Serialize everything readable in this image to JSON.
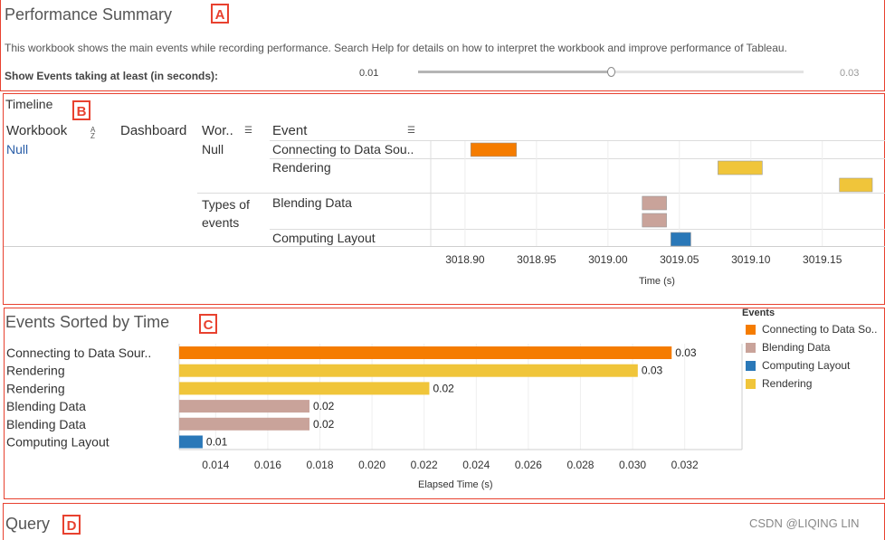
{
  "summary": {
    "title": "Performance Summary",
    "tag": "A",
    "description": "This workbook shows the main events while recording performance. Search Help for details on how to interpret the workbook and improve performance of Tableau.",
    "filter_label": "Show Events taking at least (in seconds):",
    "slider_min": "0.01",
    "slider_max": "0.03",
    "slider_value": 0.5
  },
  "timeline": {
    "title": "Timeline",
    "tag": "B",
    "headers": {
      "workbook": "Workbook",
      "dashboard": "Dashboard",
      "worksheet": "Wor..",
      "event": "Event"
    },
    "sort_icon_az": "A↓Z",
    "workbook_value": "Null",
    "worksheet_null": "Null",
    "worksheet_types": "Types of events",
    "events": [
      "Connecting to Data Sou..",
      "Rendering",
      "Blending Data",
      "Computing Layout"
    ],
    "axis_ticks": [
      "3018.90",
      "3018.95",
      "3019.00",
      "3019.05",
      "3019.10",
      "3019.15"
    ],
    "axis_label": "Time (s)"
  },
  "events_sorted": {
    "title": "Events Sorted by Time",
    "tag": "C",
    "legend_title": "Events",
    "legend": [
      {
        "label": "Connecting to Data So..",
        "color": "#f57c00"
      },
      {
        "label": "Blending Data",
        "color": "#c9a39a"
      },
      {
        "label": "Computing Layout",
        "color": "#2a78b8"
      },
      {
        "label": "Rendering",
        "color": "#f0c53a"
      }
    ]
  },
  "query": {
    "title": "Query",
    "tag": "D"
  },
  "watermark": "CSDN @LIQING LIN",
  "chart_data": [
    {
      "type": "bar",
      "title": "Timeline",
      "xlabel": "Time (s)",
      "xlim": [
        3018.876,
        3019.185
      ],
      "x_ticks": [
        3018.9,
        3018.95,
        3019.0,
        3019.05,
        3019.1,
        3019.15
      ],
      "bars": [
        {
          "event": "Connecting to Data Sou..",
          "start": 3018.904,
          "end": 3018.936,
          "color": "#f57c00"
        },
        {
          "event": "Rendering",
          "start": 3019.077,
          "end": 3019.108,
          "color": "#f0c53a"
        },
        {
          "event": "Rendering",
          "start": 3019.162,
          "end": 3019.185,
          "color": "#f0c53a"
        },
        {
          "event": "Blending Data",
          "start": 3019.024,
          "end": 3019.041,
          "color": "#c9a39a"
        },
        {
          "event": "Blending Data",
          "start": 3019.024,
          "end": 3019.041,
          "color": "#c9a39a"
        },
        {
          "event": "Computing Layout",
          "start": 3019.044,
          "end": 3019.058,
          "color": "#2a78b8"
        }
      ]
    },
    {
      "type": "bar",
      "title": "Events Sorted by Time",
      "xlabel": "Elapsed Time (s)",
      "xlim": [
        0.0126,
        0.0342
      ],
      "x_ticks": [
        0.014,
        0.016,
        0.018,
        0.02,
        0.022,
        0.024,
        0.026,
        0.028,
        0.03,
        0.032
      ],
      "categories": [
        "Connecting to Data Sour..",
        "Rendering",
        "Rendering",
        "Blending Data",
        "Blending Data",
        "Computing Layout"
      ],
      "values": [
        0.0315,
        0.0302,
        0.0222,
        0.0176,
        0.0176,
        0.0135
      ],
      "value_labels": [
        "0.03",
        "0.03",
        "0.02",
        "0.02",
        "0.02",
        "0.01"
      ],
      "colors": [
        "#f57c00",
        "#f0c53a",
        "#f0c53a",
        "#c9a39a",
        "#c9a39a",
        "#2a78b8"
      ]
    }
  ]
}
